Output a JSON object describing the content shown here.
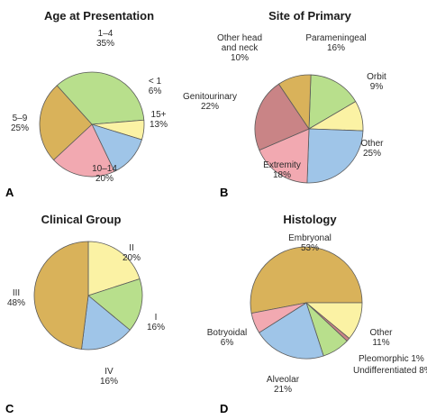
{
  "chart_data": [
    {
      "type": "pie",
      "title": "Age at Presentation",
      "panel": "A",
      "slices": [
        {
          "label": "1–4",
          "value": 35,
          "pct": "35%",
          "color": "#b8df8c"
        },
        {
          "label": "< 1",
          "value": 6,
          "pct": "6%",
          "color": "#fbf2a4"
        },
        {
          "label": "15+",
          "value": 13,
          "pct": "13%",
          "color": "#9fc5e8"
        },
        {
          "label": "10–14",
          "value": 20,
          "pct": "20%",
          "color": "#f2a9b1"
        },
        {
          "label": "5–9",
          "value": 25,
          "pct": "25%",
          "color": "#d9b25a"
        }
      ]
    },
    {
      "type": "pie",
      "title": "Site of Primary",
      "panel": "B",
      "slices": [
        {
          "label": "Parameningeal",
          "value": 16,
          "pct": "16%",
          "color": "#b8df8c"
        },
        {
          "label": "Orbit",
          "value": 9,
          "pct": "9%",
          "color": "#fbf2a4"
        },
        {
          "label": "Other",
          "value": 25,
          "pct": "25%",
          "color": "#9fc5e8"
        },
        {
          "label": "Extremity",
          "value": 18,
          "pct": "18%",
          "color": "#f2a9b1"
        },
        {
          "label": "Genitourinary",
          "value": 22,
          "pct": "22%",
          "color": "#c98486"
        },
        {
          "label": "Other head and neck",
          "label_lines": [
            "Other head",
            "and neck"
          ],
          "value": 10,
          "pct": "10%",
          "color": "#d9b25a"
        }
      ]
    },
    {
      "type": "pie",
      "title": "Clinical Group",
      "panel": "C",
      "slices": [
        {
          "label": "II",
          "value": 20,
          "pct": "20%",
          "color": "#fbf2a4"
        },
        {
          "label": "I",
          "value": 16,
          "pct": "16%",
          "color": "#b8df8c"
        },
        {
          "label": "IV",
          "value": 16,
          "pct": "16%",
          "color": "#9fc5e8"
        },
        {
          "label": "III",
          "value": 48,
          "pct": "48%",
          "color": "#d9b25a"
        }
      ]
    },
    {
      "type": "pie",
      "title": "Histology",
      "panel": "D",
      "slices": [
        {
          "label": "Embryonal",
          "value": 53,
          "pct": "53%",
          "color": "#d9b25a"
        },
        {
          "label": "Other",
          "value": 11,
          "pct": "11%",
          "color": "#fbf2a4"
        },
        {
          "label": "Pleomorphic",
          "value": 1,
          "pct": "1%",
          "color": "#c98486"
        },
        {
          "label": "Undifferentiated",
          "value": 8,
          "pct": "8%",
          "color": "#b8df8c"
        },
        {
          "label": "Alveolar",
          "value": 21,
          "pct": "21%",
          "color": "#9fc5e8"
        },
        {
          "label": "Botryoidal",
          "value": 6,
          "pct": "6%",
          "color": "#f2a9b1"
        }
      ]
    }
  ]
}
